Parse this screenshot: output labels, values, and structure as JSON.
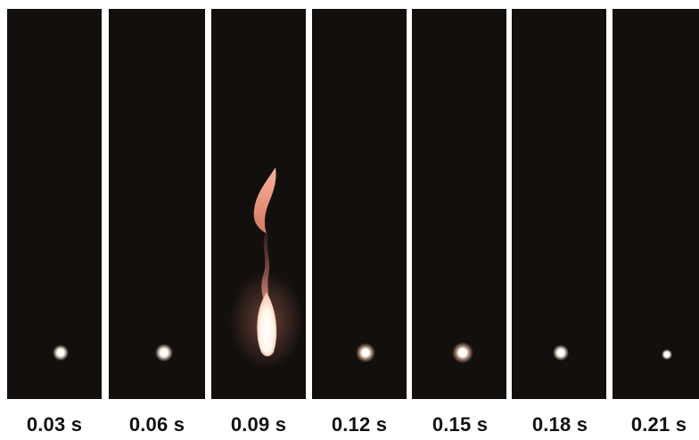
{
  "frames": [
    {
      "time_label": "0.03 s"
    },
    {
      "time_label": "0.06 s"
    },
    {
      "time_label": "0.09 s"
    },
    {
      "time_label": "0.12 s"
    },
    {
      "time_label": "0.15 s"
    },
    {
      "time_label": "0.18 s"
    },
    {
      "time_label": "0.21 s"
    }
  ],
  "colors": {
    "frame_background": "#120f0d",
    "droplet_glow": "#fff6e8",
    "flame_core": "#fffaf0",
    "flame_outer": "#f2a08c"
  }
}
